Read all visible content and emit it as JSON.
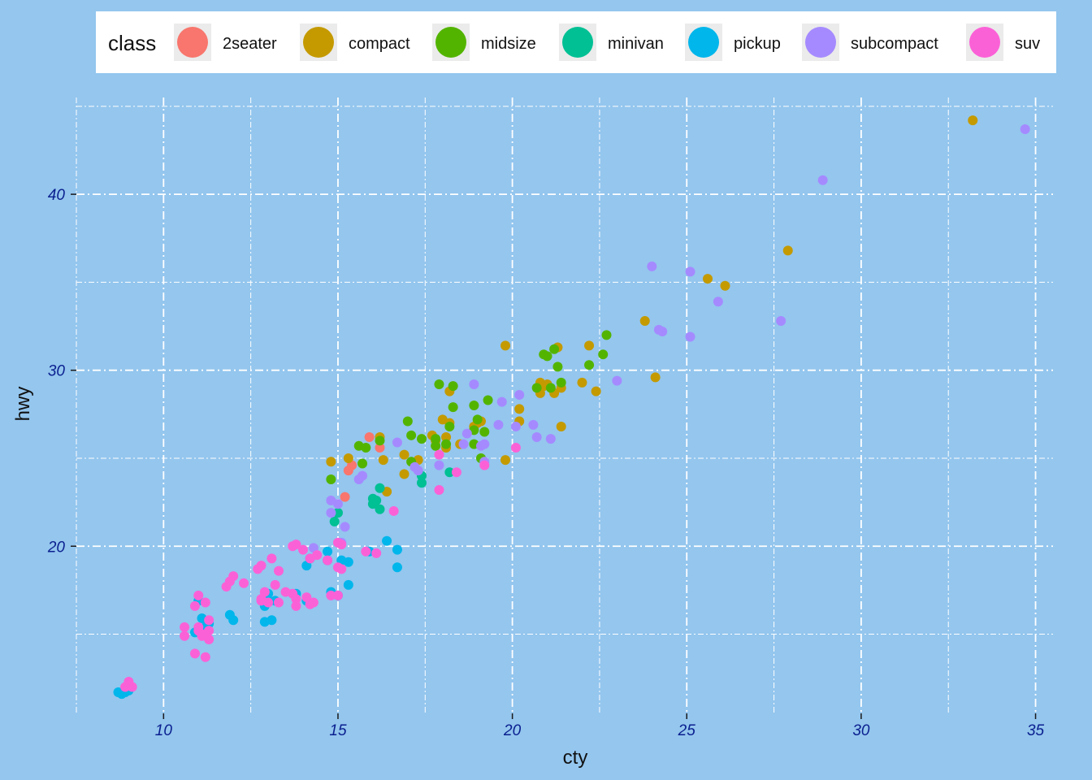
{
  "chart_data": {
    "type": "scatter",
    "xlabel": "cty",
    "ylabel": "hwy",
    "xlim": [
      7.5,
      35.5
    ],
    "ylim": [
      10.5,
      45.5
    ],
    "x_ticks": [
      10,
      15,
      20,
      25,
      30,
      35
    ],
    "y_ticks": [
      20,
      30,
      40
    ],
    "grid": true,
    "legend": {
      "title": "class",
      "placement": "top",
      "entries": [
        {
          "label": "2seater",
          "color": "#F8766D"
        },
        {
          "label": "compact",
          "color": "#C49A00"
        },
        {
          "label": "midsize",
          "color": "#53B400"
        },
        {
          "label": "minivan",
          "color": "#00C094"
        },
        {
          "label": "pickup",
          "color": "#00B6EB"
        },
        {
          "label": "subcompact",
          "color": "#A58AFF"
        },
        {
          "label": "suv",
          "color": "#FB61D7"
        }
      ]
    },
    "series": [
      {
        "name": "2seater",
        "color": "#F8766D",
        "points": [
          [
            15.9,
            26.2
          ],
          [
            16.2,
            25.6
          ],
          [
            15.3,
            24.3
          ],
          [
            15.4,
            24.6
          ],
          [
            15.2,
            22.8
          ]
        ]
      },
      {
        "name": "compact",
        "color": "#C49A00",
        "points": [
          [
            33.2,
            44.2
          ],
          [
            27.9,
            36.8
          ],
          [
            25.6,
            35.2
          ],
          [
            26.1,
            34.8
          ],
          [
            23.8,
            32.8
          ],
          [
            24.1,
            29.6
          ],
          [
            22.2,
            31.4
          ],
          [
            22.4,
            28.8
          ],
          [
            21.3,
            31.3
          ],
          [
            21.4,
            29.0
          ],
          [
            21.2,
            28.7
          ],
          [
            20.8,
            28.7
          ],
          [
            20.9,
            29.1
          ],
          [
            22.0,
            29.3
          ],
          [
            21.0,
            29.2
          ],
          [
            20.2,
            27.8
          ],
          [
            20.8,
            29.3
          ],
          [
            21.4,
            26.8
          ],
          [
            20.2,
            27.1
          ],
          [
            19.8,
            31.4
          ],
          [
            19.1,
            27.1
          ],
          [
            19.0,
            27.0
          ],
          [
            19.8,
            24.9
          ],
          [
            18.9,
            26.8
          ],
          [
            18.2,
            28.8
          ],
          [
            18.0,
            27.2
          ],
          [
            18.2,
            27.0
          ],
          [
            18.1,
            26.2
          ],
          [
            17.8,
            26.0
          ],
          [
            18.1,
            25.6
          ],
          [
            17.7,
            26.3
          ],
          [
            18.5,
            25.8
          ],
          [
            17.3,
            24.9
          ],
          [
            16.9,
            25.2
          ],
          [
            16.9,
            24.1
          ],
          [
            16.3,
            24.9
          ],
          [
            15.3,
            25.0
          ],
          [
            14.8,
            24.8
          ],
          [
            16.4,
            23.1
          ],
          [
            16.2,
            26.2
          ]
        ]
      },
      {
        "name": "midsize",
        "color": "#53B400",
        "points": [
          [
            22.7,
            32.0
          ],
          [
            22.6,
            30.9
          ],
          [
            21.2,
            31.2
          ],
          [
            21.0,
            30.8
          ],
          [
            20.9,
            30.9
          ],
          [
            21.3,
            30.2
          ],
          [
            22.2,
            30.3
          ],
          [
            20.7,
            29.0
          ],
          [
            21.1,
            29.0
          ],
          [
            21.4,
            29.3
          ],
          [
            19.3,
            28.3
          ],
          [
            18.9,
            28.0
          ],
          [
            17.9,
            29.2
          ],
          [
            18.3,
            29.1
          ],
          [
            18.3,
            27.9
          ],
          [
            17.0,
            27.1
          ],
          [
            17.1,
            26.3
          ],
          [
            17.8,
            26.1
          ],
          [
            17.4,
            26.1
          ],
          [
            18.1,
            25.8
          ],
          [
            18.2,
            26.8
          ],
          [
            18.9,
            26.6
          ],
          [
            19.0,
            27.2
          ],
          [
            19.2,
            26.5
          ],
          [
            18.9,
            25.8
          ],
          [
            17.8,
            25.7
          ],
          [
            15.6,
            25.7
          ],
          [
            15.8,
            25.6
          ],
          [
            16.2,
            26.0
          ],
          [
            15.7,
            24.7
          ],
          [
            17.1,
            24.8
          ],
          [
            19.1,
            25.0
          ],
          [
            14.8,
            23.8
          ]
        ]
      },
      {
        "name": "minivan",
        "color": "#00C094",
        "points": [
          [
            17.4,
            24.0
          ],
          [
            17.4,
            23.6
          ],
          [
            18.2,
            24.2
          ],
          [
            16.2,
            23.3
          ],
          [
            16.0,
            22.7
          ],
          [
            16.0,
            22.4
          ],
          [
            16.1,
            22.6
          ],
          [
            16.2,
            22.1
          ],
          [
            15.0,
            21.9
          ],
          [
            14.9,
            21.4
          ]
        ]
      },
      {
        "name": "pickup",
        "color": "#00B6EB",
        "points": [
          [
            15.3,
            19.1
          ],
          [
            16.4,
            20.3
          ],
          [
            16.7,
            19.8
          ],
          [
            15.9,
            19.7
          ],
          [
            14.7,
            19.7
          ],
          [
            14.7,
            19.2
          ],
          [
            15.1,
            19.2
          ],
          [
            16.7,
            18.8
          ],
          [
            14.1,
            18.9
          ],
          [
            14.2,
            19.3
          ],
          [
            14.8,
            17.4
          ],
          [
            15.3,
            17.8
          ],
          [
            15.0,
            17.2
          ],
          [
            14.1,
            16.9
          ],
          [
            13.8,
            17.3
          ],
          [
            13.0,
            17.3
          ],
          [
            13.0,
            16.9
          ],
          [
            13.2,
            16.9
          ],
          [
            12.9,
            16.6
          ],
          [
            13.1,
            15.8
          ],
          [
            12.9,
            15.7
          ],
          [
            12.0,
            15.8
          ],
          [
            11.9,
            16.1
          ],
          [
            11.1,
            15.9
          ],
          [
            11.0,
            16.9
          ],
          [
            11.2,
            15.4
          ],
          [
            11.3,
            15.6
          ],
          [
            10.9,
            15.1
          ],
          [
            11.2,
            15.0
          ],
          [
            8.7,
            11.7
          ],
          [
            8.9,
            11.7
          ],
          [
            8.8,
            11.6
          ],
          [
            9.0,
            11.8
          ]
        ]
      },
      {
        "name": "subcompact",
        "color": "#A58AFF",
        "points": [
          [
            34.7,
            43.7
          ],
          [
            28.9,
            40.8
          ],
          [
            24.0,
            35.9
          ],
          [
            25.1,
            35.6
          ],
          [
            25.9,
            33.9
          ],
          [
            27.7,
            32.8
          ],
          [
            24.2,
            32.3
          ],
          [
            24.3,
            32.2
          ],
          [
            25.1,
            31.9
          ],
          [
            23.0,
            29.4
          ],
          [
            20.2,
            28.6
          ],
          [
            19.7,
            28.2
          ],
          [
            18.9,
            29.2
          ],
          [
            19.6,
            26.9
          ],
          [
            20.6,
            26.9
          ],
          [
            20.1,
            26.8
          ],
          [
            21.1,
            26.1
          ],
          [
            20.7,
            26.2
          ],
          [
            19.2,
            25.8
          ],
          [
            19.1,
            25.7
          ],
          [
            19.2,
            24.8
          ],
          [
            18.7,
            26.4
          ],
          [
            18.6,
            25.8
          ],
          [
            16.7,
            25.9
          ],
          [
            17.2,
            24.5
          ],
          [
            17.3,
            24.3
          ],
          [
            17.9,
            24.6
          ],
          [
            15.7,
            24.0
          ],
          [
            15.6,
            23.8
          ],
          [
            14.8,
            22.6
          ],
          [
            15.0,
            22.4
          ],
          [
            14.8,
            21.9
          ],
          [
            15.2,
            21.1
          ],
          [
            15.1,
            20.2
          ],
          [
            14.3,
            19.9
          ]
        ]
      },
      {
        "name": "suv",
        "color": "#FB61D7",
        "points": [
          [
            20.1,
            25.6
          ],
          [
            17.9,
            25.2
          ],
          [
            18.4,
            24.2
          ],
          [
            19.2,
            24.6
          ],
          [
            17.9,
            23.2
          ],
          [
            16.6,
            22.0
          ],
          [
            16.1,
            19.6
          ],
          [
            15.8,
            19.7
          ],
          [
            15.0,
            20.2
          ],
          [
            15.1,
            20.1
          ],
          [
            13.7,
            20.0
          ],
          [
            13.8,
            20.1
          ],
          [
            14.0,
            19.8
          ],
          [
            14.4,
            19.5
          ],
          [
            14.2,
            19.3
          ],
          [
            14.7,
            19.2
          ],
          [
            13.3,
            18.6
          ],
          [
            13.1,
            19.3
          ],
          [
            12.8,
            18.9
          ],
          [
            12.7,
            18.7
          ],
          [
            12.0,
            18.3
          ],
          [
            11.9,
            18.0
          ],
          [
            11.8,
            17.7
          ],
          [
            12.3,
            17.9
          ],
          [
            13.2,
            17.8
          ],
          [
            13.5,
            17.4
          ],
          [
            12.9,
            17.4
          ],
          [
            12.8,
            17.0
          ],
          [
            13.0,
            16.8
          ],
          [
            13.3,
            16.8
          ],
          [
            13.7,
            17.3
          ],
          [
            13.8,
            17.0
          ],
          [
            14.1,
            17.1
          ],
          [
            14.2,
            16.7
          ],
          [
            14.3,
            16.8
          ],
          [
            14.8,
            17.2
          ],
          [
            15.0,
            17.2
          ],
          [
            15.0,
            18.8
          ],
          [
            15.1,
            18.7
          ],
          [
            13.8,
            16.6
          ],
          [
            12.8,
            16.9
          ],
          [
            11.0,
            17.2
          ],
          [
            11.2,
            16.8
          ],
          [
            10.9,
            16.6
          ],
          [
            10.6,
            15.4
          ],
          [
            11.0,
            15.4
          ],
          [
            11.0,
            15.2
          ],
          [
            11.3,
            15.2
          ],
          [
            11.1,
            14.9
          ],
          [
            11.2,
            15.0
          ],
          [
            10.6,
            14.9
          ],
          [
            11.3,
            14.7
          ],
          [
            11.3,
            15.8
          ],
          [
            10.9,
            13.9
          ],
          [
            11.2,
            13.7
          ],
          [
            9.0,
            12.3
          ],
          [
            9.1,
            12.0
          ],
          [
            8.9,
            12.0
          ],
          [
            9.0,
            12.1
          ]
        ]
      }
    ]
  }
}
